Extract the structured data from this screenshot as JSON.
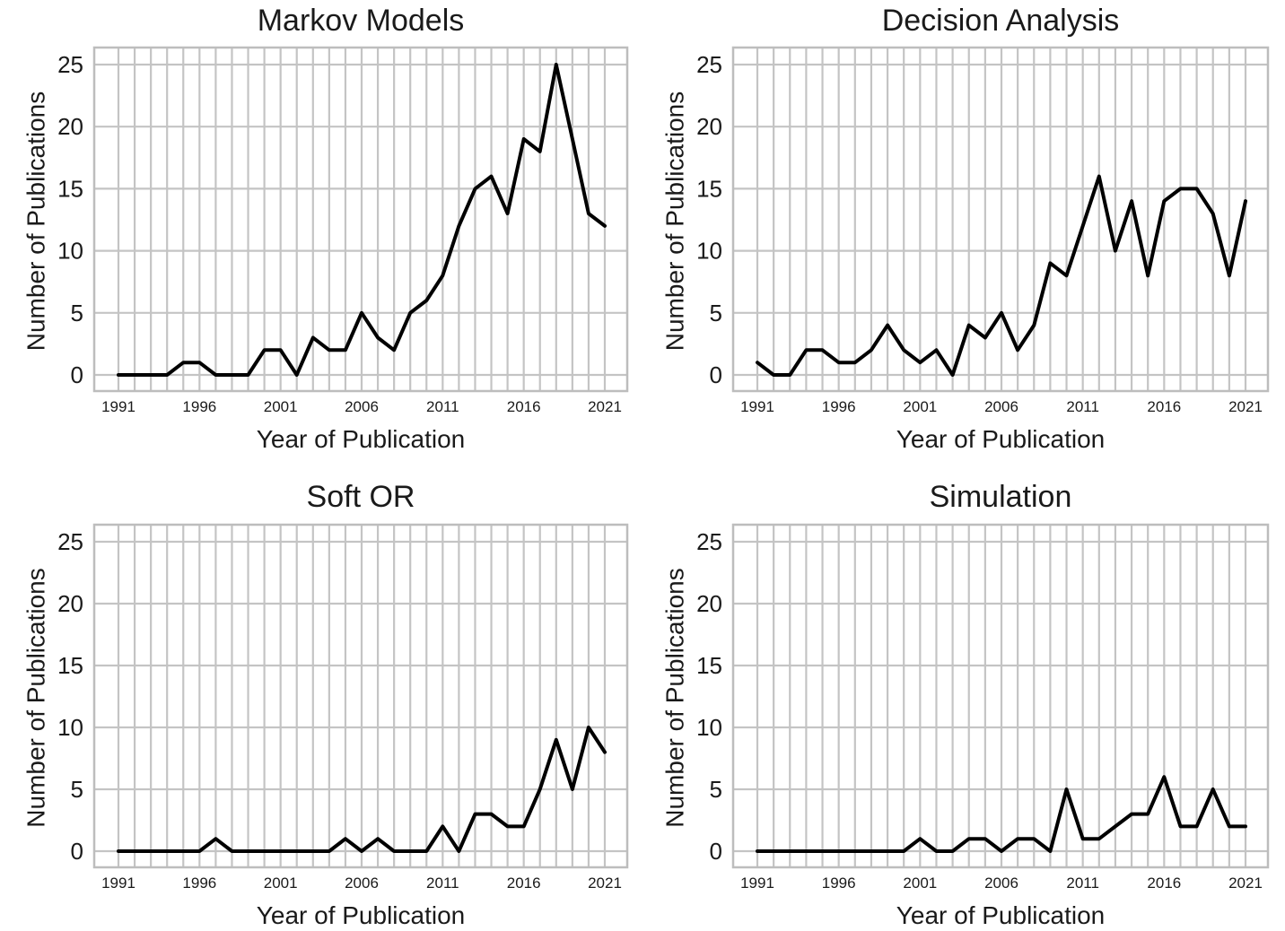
{
  "chart_data": [
    {
      "type": "line",
      "title": "Markov Models",
      "xlabel": "Year of Publication",
      "ylabel": "Number of Publications",
      "xlim": [
        1991,
        2021
      ],
      "ylim": [
        0,
        25
      ],
      "xticks": [
        1991,
        1996,
        2001,
        2006,
        2011,
        2016,
        2021
      ],
      "yticks": [
        0,
        5,
        10,
        15,
        20,
        25
      ],
      "grid": true,
      "x": [
        1991,
        1992,
        1993,
        1994,
        1995,
        1996,
        1997,
        1998,
        1999,
        2000,
        2001,
        2002,
        2003,
        2004,
        2005,
        2006,
        2007,
        2008,
        2009,
        2010,
        2011,
        2012,
        2013,
        2014,
        2015,
        2016,
        2017,
        2018,
        2019,
        2020,
        2021
      ],
      "values": [
        0,
        0,
        0,
        0,
        1,
        1,
        0,
        0,
        0,
        2,
        2,
        0,
        3,
        2,
        2,
        5,
        3,
        2,
        5,
        6,
        8,
        12,
        15,
        16,
        13,
        19,
        18,
        25,
        19,
        13,
        12
      ]
    },
    {
      "type": "line",
      "title": "Decision Analysis",
      "xlabel": "Year of Publication",
      "ylabel": "Number of Publications",
      "xlim": [
        1991,
        2021
      ],
      "ylim": [
        0,
        25
      ],
      "xticks": [
        1991,
        1996,
        2001,
        2006,
        2011,
        2016,
        2021
      ],
      "yticks": [
        0,
        5,
        10,
        15,
        20,
        25
      ],
      "grid": true,
      "x": [
        1991,
        1992,
        1993,
        1994,
        1995,
        1996,
        1997,
        1998,
        1999,
        2000,
        2001,
        2002,
        2003,
        2004,
        2005,
        2006,
        2007,
        2008,
        2009,
        2010,
        2011,
        2012,
        2013,
        2014,
        2015,
        2016,
        2017,
        2018,
        2019,
        2020,
        2021
      ],
      "values": [
        1,
        0,
        0,
        2,
        2,
        1,
        1,
        2,
        4,
        2,
        1,
        2,
        0,
        4,
        3,
        5,
        2,
        4,
        9,
        8,
        12,
        16,
        10,
        14,
        8,
        14,
        15,
        15,
        13,
        8,
        14
      ]
    },
    {
      "type": "line",
      "title": "Soft OR",
      "xlabel": "Year of Publication",
      "ylabel": "Number of Publications",
      "xlim": [
        1991,
        2021
      ],
      "ylim": [
        0,
        25
      ],
      "xticks": [
        1991,
        1996,
        2001,
        2006,
        2011,
        2016,
        2021
      ],
      "yticks": [
        0,
        5,
        10,
        15,
        20,
        25
      ],
      "grid": true,
      "x": [
        1991,
        1992,
        1993,
        1994,
        1995,
        1996,
        1997,
        1998,
        1999,
        2000,
        2001,
        2002,
        2003,
        2004,
        2005,
        2006,
        2007,
        2008,
        2009,
        2010,
        2011,
        2012,
        2013,
        2014,
        2015,
        2016,
        2017,
        2018,
        2019,
        2020,
        2021
      ],
      "values": [
        0,
        0,
        0,
        0,
        0,
        0,
        1,
        0,
        0,
        0,
        0,
        0,
        0,
        0,
        1,
        0,
        1,
        0,
        0,
        0,
        2,
        0,
        3,
        3,
        2,
        2,
        5,
        9,
        5,
        10,
        8
      ]
    },
    {
      "type": "line",
      "title": "Simulation",
      "xlabel": "Year of Publication",
      "ylabel": "Number of Publications",
      "xlim": [
        1991,
        2021
      ],
      "ylim": [
        0,
        25
      ],
      "xticks": [
        1991,
        1996,
        2001,
        2006,
        2011,
        2016,
        2021
      ],
      "yticks": [
        0,
        5,
        10,
        15,
        20,
        25
      ],
      "grid": true,
      "x": [
        1991,
        1992,
        1993,
        1994,
        1995,
        1996,
        1997,
        1998,
        1999,
        2000,
        2001,
        2002,
        2003,
        2004,
        2005,
        2006,
        2007,
        2008,
        2009,
        2010,
        2011,
        2012,
        2013,
        2014,
        2015,
        2016,
        2017,
        2018,
        2019,
        2020,
        2021
      ],
      "values": [
        0,
        0,
        0,
        0,
        0,
        0,
        0,
        0,
        0,
        0,
        1,
        0,
        0,
        1,
        1,
        0,
        1,
        1,
        0,
        5,
        1,
        1,
        2,
        3,
        3,
        6,
        2,
        2,
        5,
        2,
        2
      ]
    }
  ],
  "colors": {
    "line": "#000000",
    "grid": "#c4c4c4",
    "frame": "#bdbdbd",
    "text": "#1a1a1a"
  }
}
